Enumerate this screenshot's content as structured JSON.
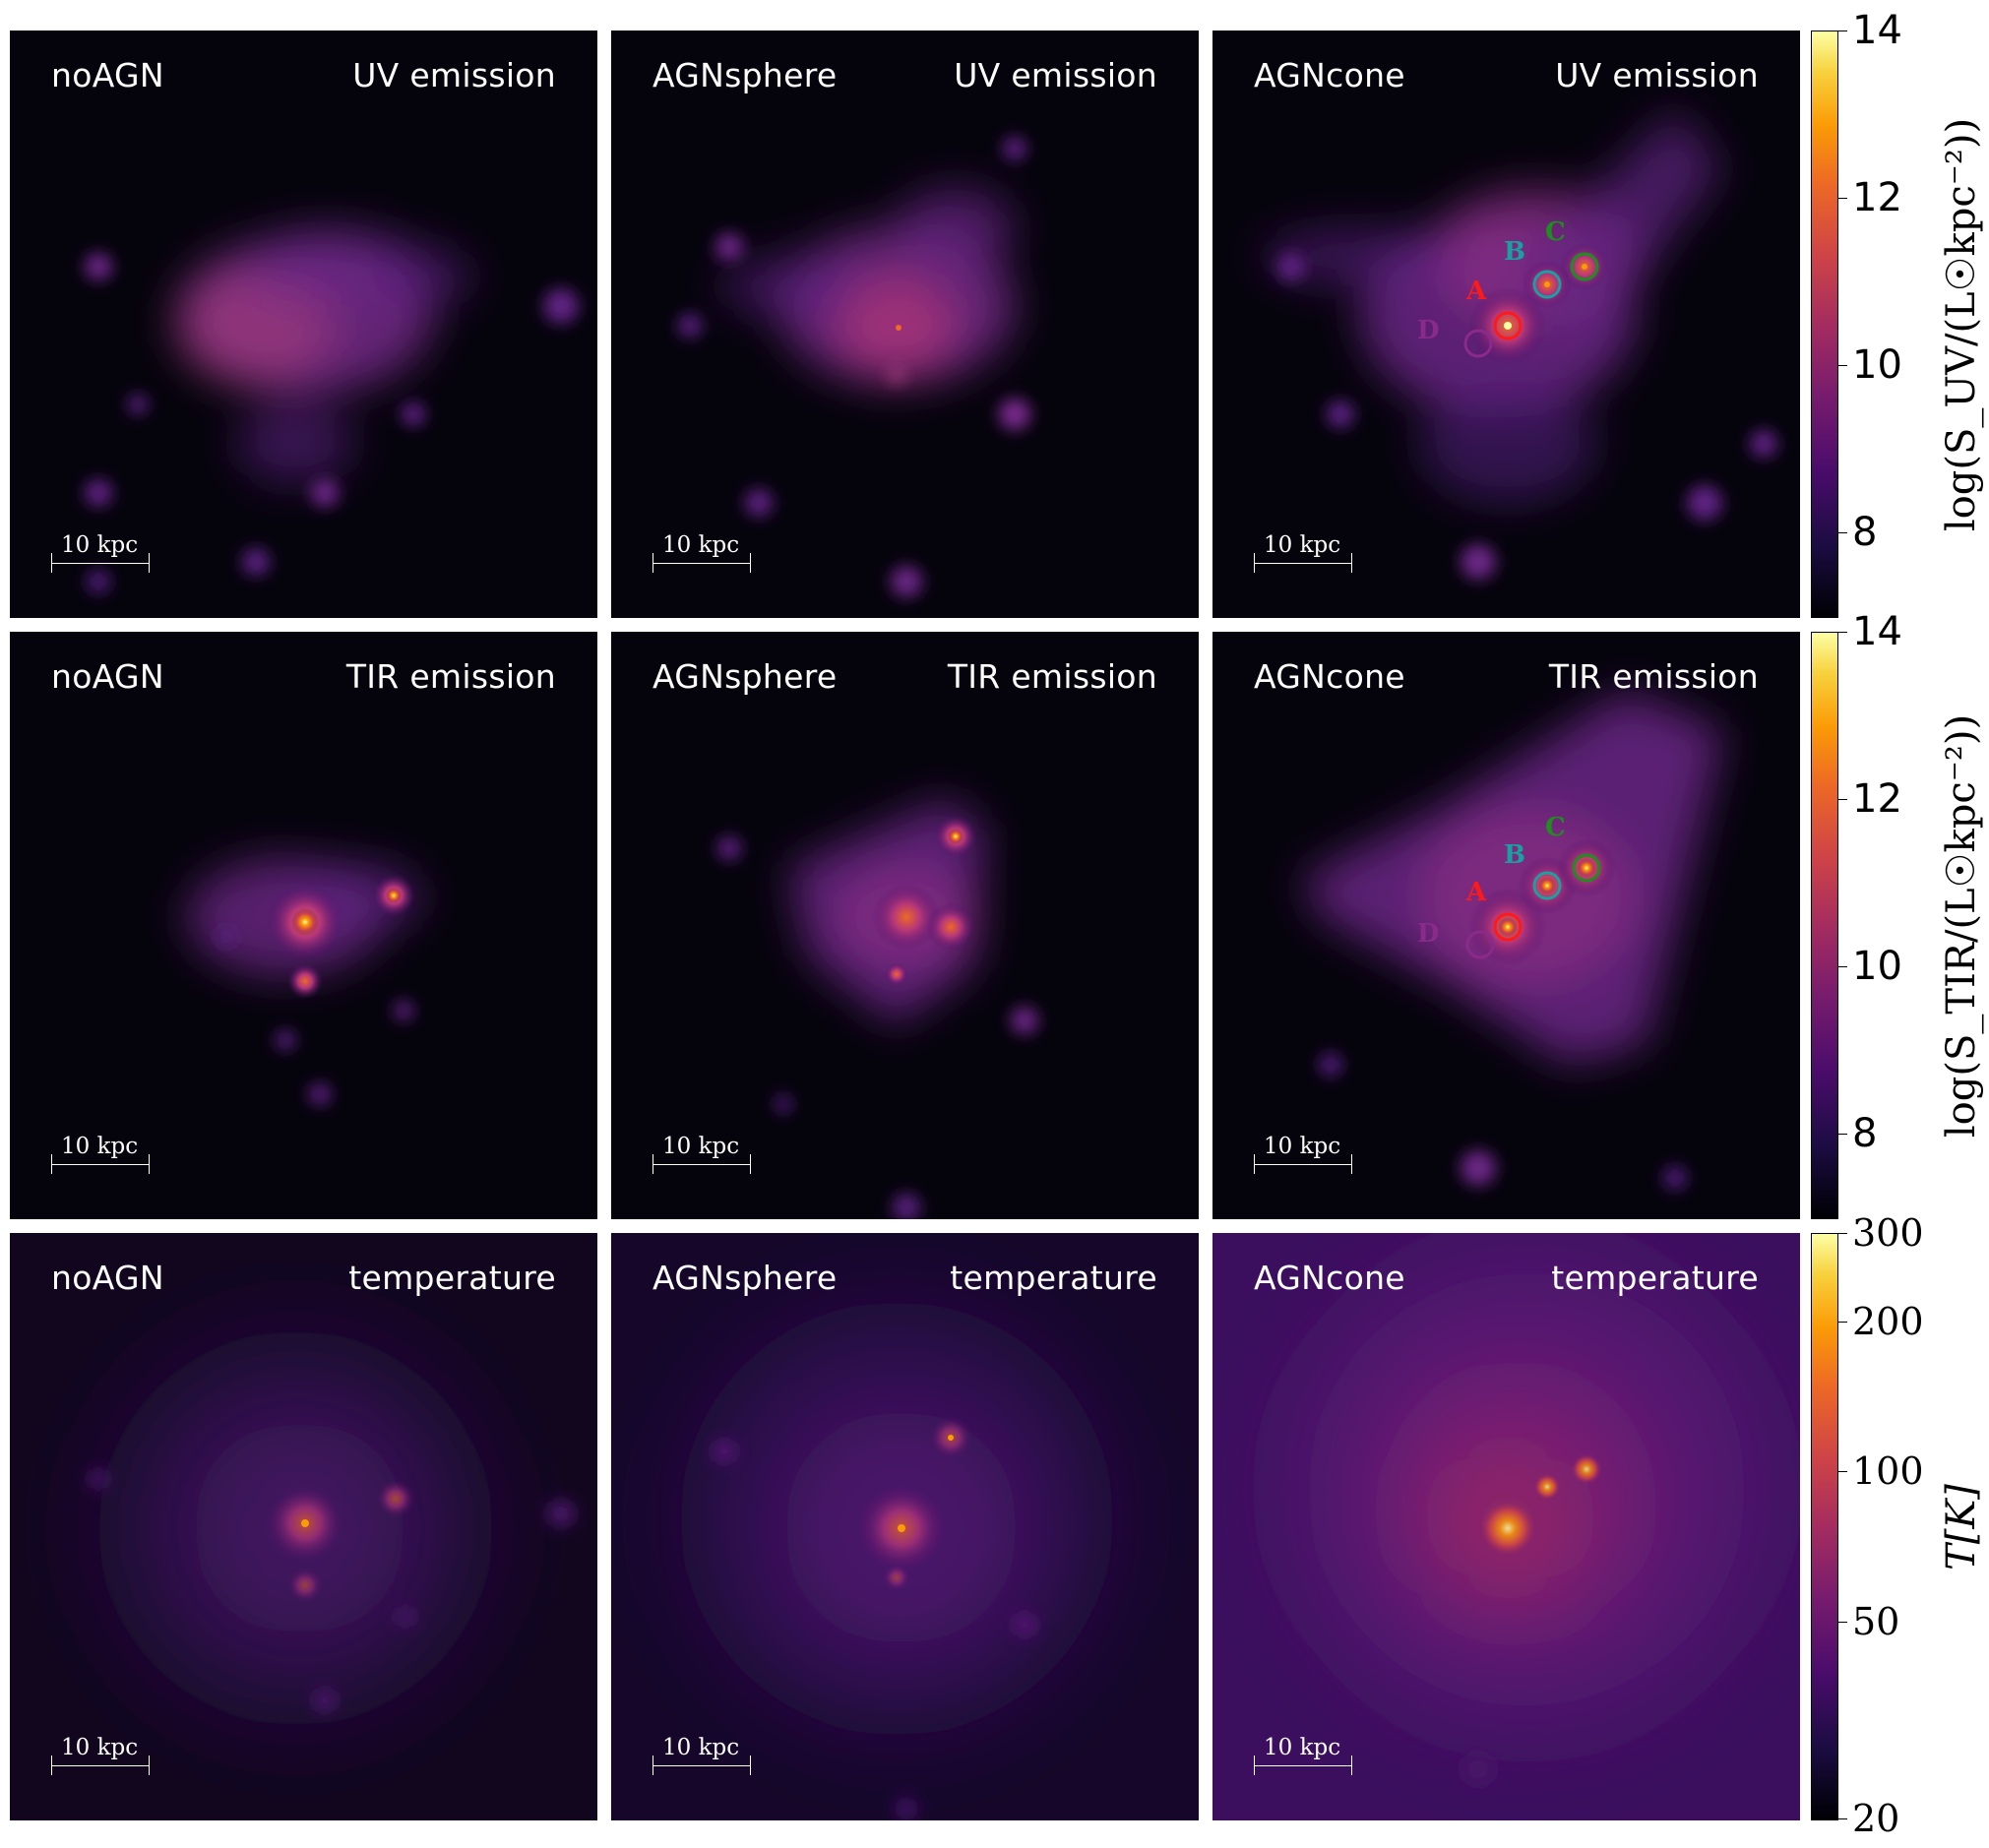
{
  "colors": {
    "marker_A": "#ff1a1a",
    "marker_B": "#1aa0a0",
    "marker_C": "#1e8f1e",
    "marker_D": "#8a2a8a"
  },
  "panels": [
    {
      "sim": "noAGN",
      "quantity": "UV emission",
      "scale": "10 kpc"
    },
    {
      "sim": "AGNsphere",
      "quantity": "UV emission",
      "scale": "10 kpc"
    },
    {
      "sim": "AGNcone",
      "quantity": "UV emission",
      "scale": "10 kpc"
    },
    {
      "sim": "noAGN",
      "quantity": "TIR emission",
      "scale": "10 kpc"
    },
    {
      "sim": "AGNsphere",
      "quantity": "TIR emission",
      "scale": "10 kpc"
    },
    {
      "sim": "AGNcone",
      "quantity": "TIR emission",
      "scale": "10 kpc"
    },
    {
      "sim": "noAGN",
      "quantity": "temperature",
      "scale": "10 kpc"
    },
    {
      "sim": "AGNsphere",
      "quantity": "temperature",
      "scale": "10 kpc"
    },
    {
      "sim": "AGNcone",
      "quantity": "temperature",
      "scale": "10 kpc"
    }
  ],
  "markers": {
    "a": "A",
    "b": "B",
    "c": "C",
    "d": "D"
  },
  "colorbars": [
    {
      "title": "log(S_UV/(L☉kpc⁻²))",
      "ticks": [
        "14",
        "12",
        "10",
        "8"
      ]
    },
    {
      "title": "log(S_TIR/(L☉kpc⁻²))",
      "ticks": [
        "14",
        "12",
        "10",
        "8"
      ]
    },
    {
      "title": "T[K]",
      "ticks": [
        "300",
        "200",
        "100",
        "50",
        "20"
      ]
    }
  ]
}
